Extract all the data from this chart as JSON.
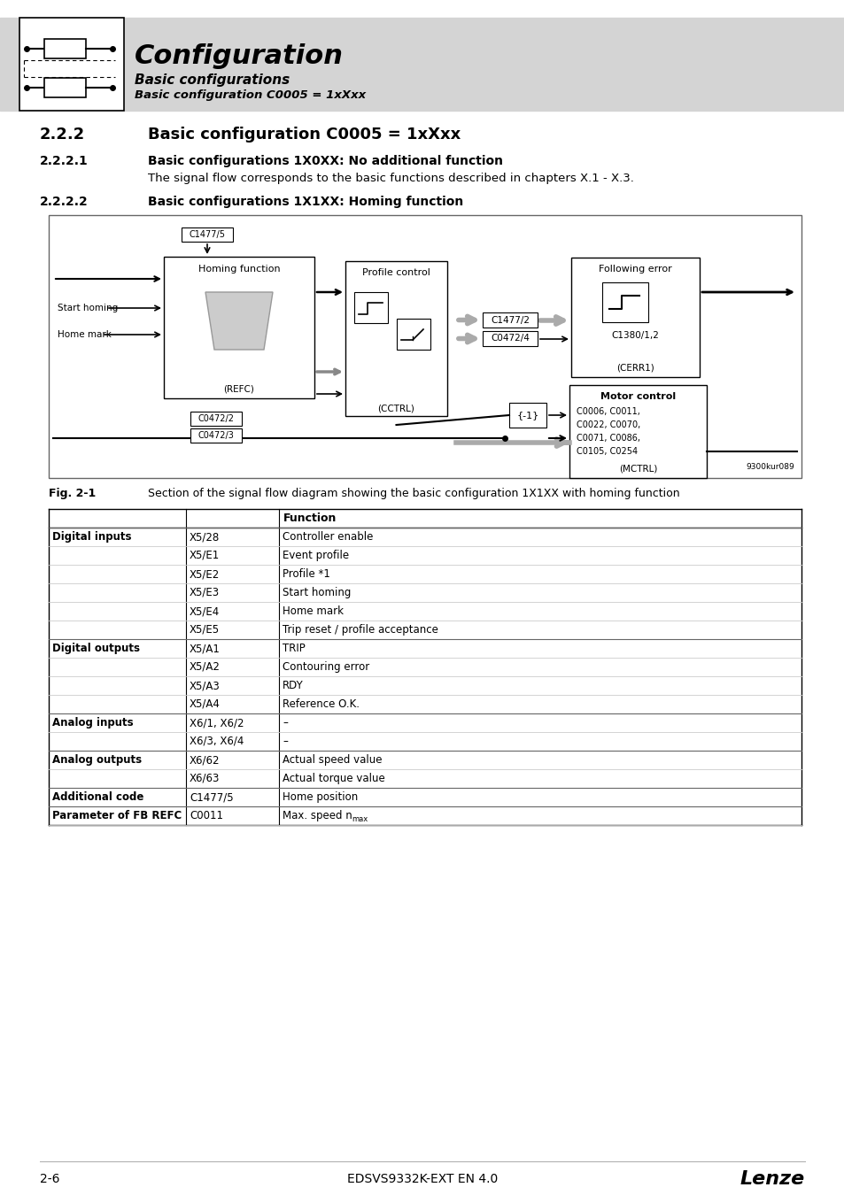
{
  "bg_color": "#ffffff",
  "header_bg": "#d4d4d4",
  "header_title": "Configuration",
  "header_sub1": "Basic configurations",
  "header_sub2": "Basic configuration C0005 = 1xXxx",
  "section_number": "2.2.2",
  "section_title": "Basic configuration C0005 = 1xXxx",
  "sub1_number": "2.2.2.1",
  "sub1_title": "Basic configurations 1X0XX: No additional function",
  "sub1_text": "The signal flow corresponds to the basic functions described in chapters X.1 - X.3.",
  "sub2_number": "2.2.2.2",
  "sub2_title": "Basic configurations 1X1XX: Homing function",
  "fig_caption": "Fig. 2-1",
  "fig_text": "Section of the signal flow diagram showing the basic configuration 1X1XX with homing function",
  "footer_left": "2-6",
  "footer_center": "EDSVS9332K-EXT EN 4.0",
  "footer_right": "Lenze",
  "table_rows": [
    [
      "Digital inputs",
      "X5/28",
      "Controller enable"
    ],
    [
      "",
      "X5/E1",
      "Event profile"
    ],
    [
      "",
      "X5/E2",
      "Profile *1"
    ],
    [
      "",
      "X5/E3",
      "Start homing"
    ],
    [
      "",
      "X5/E4",
      "Home mark"
    ],
    [
      "",
      "X5/E5",
      "Trip reset / profile acceptance"
    ],
    [
      "Digital outputs",
      "X5/A1",
      "TRIP"
    ],
    [
      "",
      "X5/A2",
      "Contouring error"
    ],
    [
      "",
      "X5/A3",
      "RDY"
    ],
    [
      "",
      "X5/A4",
      "Reference O.K."
    ],
    [
      "Analog inputs",
      "X6/1, X6/2",
      "–"
    ],
    [
      "",
      "X6/3, X6/4",
      "–"
    ],
    [
      "Analog outputs",
      "X6/62",
      "Actual speed value"
    ],
    [
      "",
      "X6/63",
      "Actual torque value"
    ],
    [
      "Additional code",
      "C1477/5",
      "Home position"
    ],
    [
      "Parameter of FB REFC",
      "C0011",
      "Max. speed n"
    ]
  ],
  "bold_rows_col0": [
    "Digital inputs",
    "Digital outputs",
    "Analog inputs",
    "Analog outputs",
    "Additional code",
    "Parameter of FB REFC"
  ]
}
